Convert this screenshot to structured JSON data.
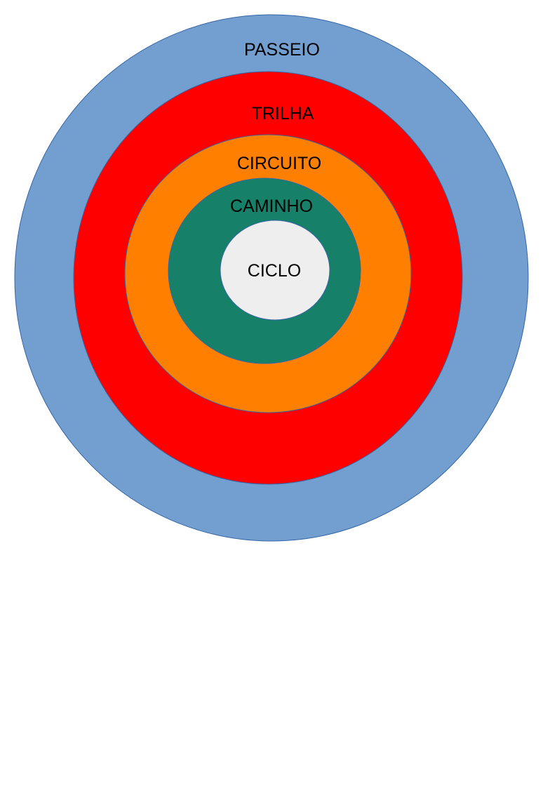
{
  "diagram": {
    "type": "nested-circles",
    "rings": [
      {
        "label": "PASSEIO",
        "color": "#729fcf"
      },
      {
        "label": "TRILHA",
        "color": "#ff0000"
      },
      {
        "label": "CIRCUITO",
        "color": "#ff7f00"
      },
      {
        "label": "CAMINHO",
        "color": "#168168"
      },
      {
        "label": "CICLO",
        "color": "#eeeeee"
      }
    ],
    "outline_color": "#3465a4"
  }
}
